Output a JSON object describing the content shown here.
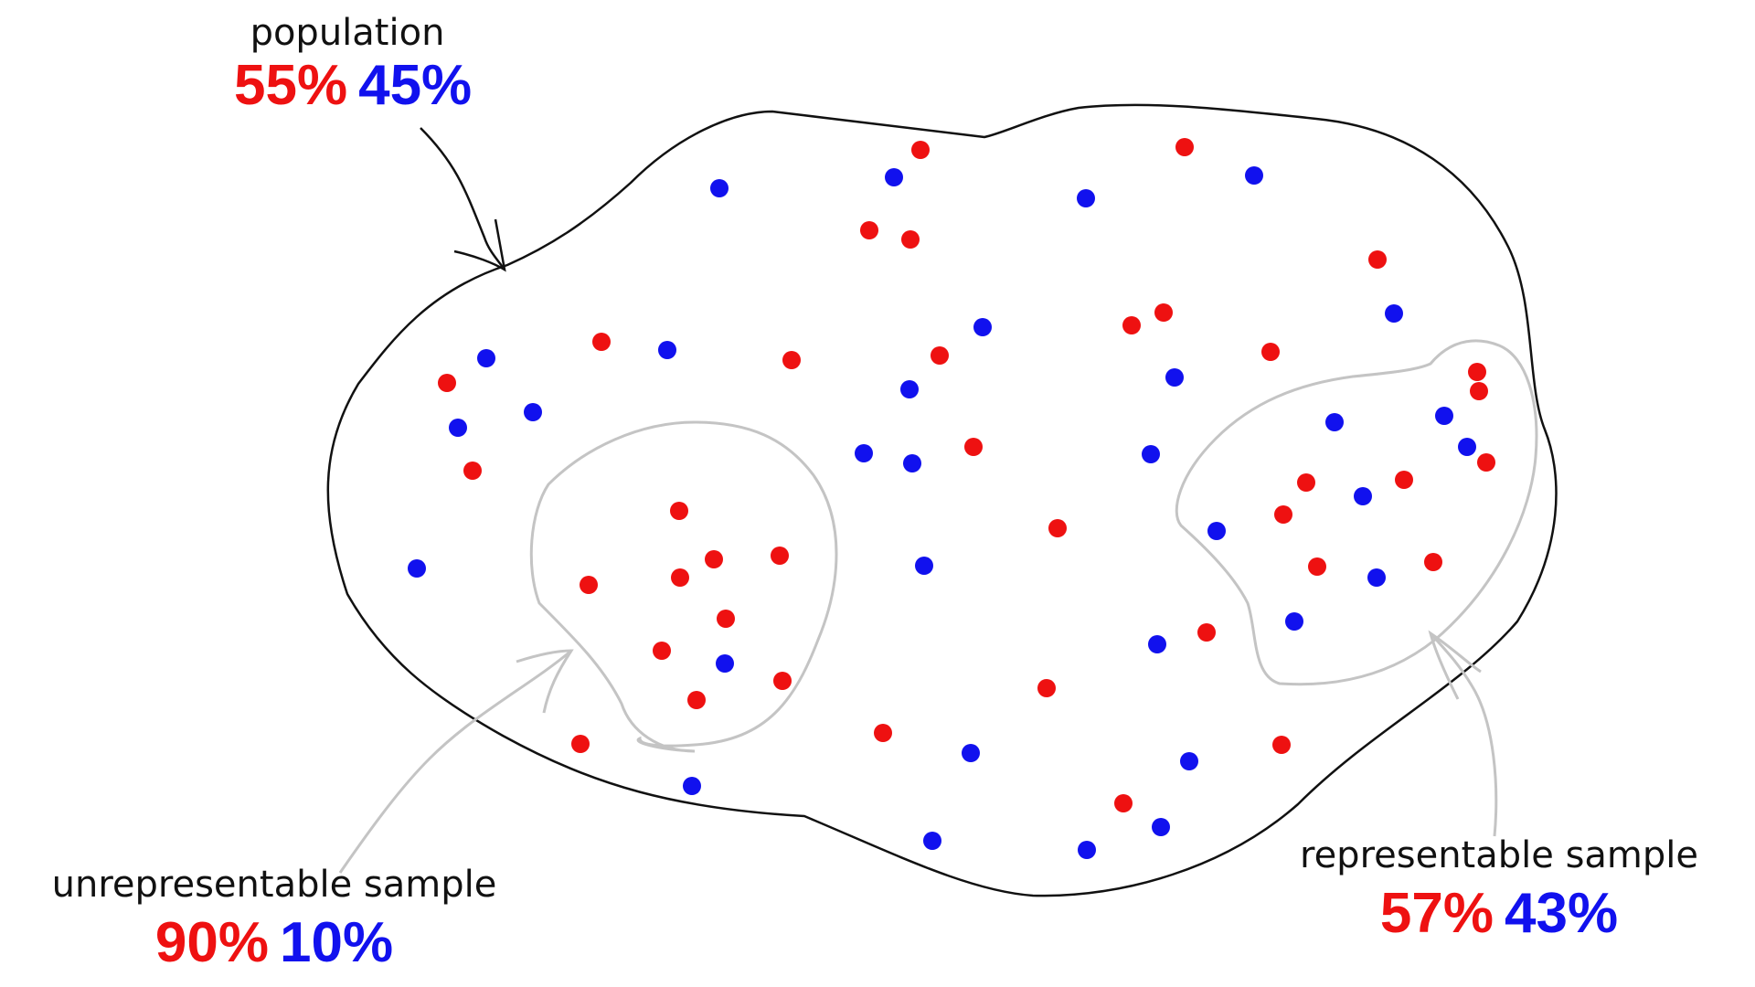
{
  "population": {
    "caption": "population",
    "red_pct": "55%",
    "blue_pct": "45%"
  },
  "unrepresentable": {
    "caption": "unrepresentable sample",
    "red_pct": "90%",
    "blue_pct": "10%"
  },
  "representable": {
    "caption": "representable sample",
    "red_pct": "57%",
    "blue_pct": "43%"
  },
  "colors": {
    "red": "#ee1111",
    "blue": "#1111ee",
    "population_outline": "#111111",
    "sample_outline": "#c4c4c4",
    "text": "#111111"
  }
}
